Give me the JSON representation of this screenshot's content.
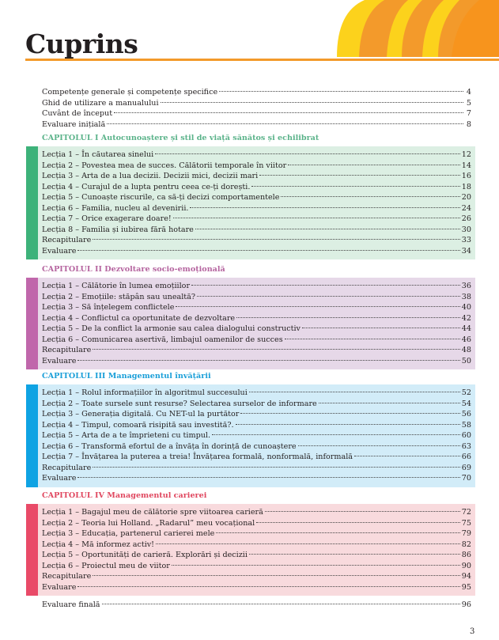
{
  "title": "Cuprins",
  "page_number": "3",
  "colors": {
    "accent": "#f39a2b",
    "deco_yellow": "#fcd21c",
    "deco_orange": "#f39a2b"
  },
  "intro": [
    {
      "label": "Competențe generale și competențe specifice",
      "page": "4"
    },
    {
      "label": "Ghid de utilizare a manualului",
      "page": "5"
    },
    {
      "label": "Cuvânt de început",
      "page": "7"
    },
    {
      "label": "Evaluare inițială",
      "page": "8"
    }
  ],
  "chapters": [
    {
      "title": "CAPITOLUL I  Autocunoaștere și stil de viață sănătos și echilibrat",
      "head_color": "#5bb38a",
      "bar_color": "#3db27a",
      "bg_color": "#dcefe3",
      "items": [
        {
          "label": "Lecția 1 – În căutarea sinelui",
          "page": "12"
        },
        {
          "label": "Lecția 2 – Povestea mea de succes. Călătorii temporale în viitor",
          "page": "14"
        },
        {
          "label": "Lecția 3 – Arta de a lua decizii. Decizii mici, decizii mari",
          "page": "16"
        },
        {
          "label": "Lecția 4 – Curajul de a lupta pentru ceea ce-ți dorești.",
          "page": "18"
        },
        {
          "label": "Lecția 5 – Cunoaște riscurile, ca să-ți decizi comportamentele",
          "page": "20"
        },
        {
          "label": "Lecția 6 – Familia, nucleu al devenirii.",
          "page": "24"
        },
        {
          "label": "Lecția 7 – Orice exagerare doare!",
          "page": "26"
        },
        {
          "label": "Lecția 8 – Familia și iubirea fără hotare",
          "page": "30"
        },
        {
          "label": "Recapitulare",
          "page": "33"
        },
        {
          "label": "Evaluare",
          "page": "34"
        }
      ]
    },
    {
      "title": "CAPITOLUL II Dezvoltare socio-emoțională",
      "head_color": "#b5649f",
      "bar_color": "#c067ab",
      "bg_color": "#e6d8e8",
      "items": [
        {
          "label": "Lecția 1 – Călătorie în lumea emoțiilor",
          "page": "36"
        },
        {
          "label": "Lecția 2 – Emoțiile: stăpân sau unealtă?",
          "page": "38"
        },
        {
          "label": "Lecția 3 – Să înțelegem conflictele",
          "page": "40"
        },
        {
          "label": "Lecția 4 – Conflictul ca oportunitate de dezvoltare",
          "page": "42"
        },
        {
          "label": "Lecția 5 – De la conflict la armonie sau calea dialogului constructiv",
          "page": "44"
        },
        {
          "label": "Lecția 6 – Comunicarea asertivă, limbajul oamenilor de succes",
          "page": "46"
        },
        {
          "label": "Recapitulare",
          "page": "48"
        },
        {
          "label": "Evaluare",
          "page": "50"
        }
      ]
    },
    {
      "title": "CAPITOLUL III Managementul învățării",
      "head_color": "#1a9fd8",
      "bar_color": "#0fa3e3",
      "bg_color": "#d2ecf8",
      "items": [
        {
          "label": "Lecția 1 – Rolul informațiilor în algoritmul succesului",
          "page": "52"
        },
        {
          "label": "Lecția 2 – Toate sursele sunt resurse? Selectarea surselor de informare",
          "page": "54"
        },
        {
          "label": "Lecția 3 – Generația digitală. Cu NET-ul la purtător",
          "page": "56"
        },
        {
          "label": "Lecția 4 – Timpul, comoară risipită sau investită?.",
          "page": "58"
        },
        {
          "label": "Lecția 5 – Arta de a te împrieteni cu timpul.",
          "page": "60"
        },
        {
          "label": "Lecția 6 – Transformă efortul de a învăța în dorință de cunoaștere",
          "page": "63"
        },
        {
          "label": "Lecția 7 – Învățarea la puterea a treia! Învățarea formală, nonformală, informală",
          "page": "66"
        },
        {
          "label": "Recapitulare",
          "page": "69"
        },
        {
          "label": "Evaluare",
          "page": "70"
        }
      ]
    },
    {
      "title": "CAPITOLUL IV Managementul carierei",
      "head_color": "#e0475f",
      "bar_color": "#e94a68",
      "bg_color": "#f8dadd",
      "items": [
        {
          "label": "Lecția 1 – Bagajul meu de călătorie spre viitoarea carieră",
          "page": "72"
        },
        {
          "label": "Lecția 2 – Teoria lui Holland. „Radarul” meu vocațional",
          "page": "75"
        },
        {
          "label": "Lecția 3 – Educația, partenerul carierei mele",
          "page": "79"
        },
        {
          "label": "Lecția 4 – Mă informez activ!",
          "page": "82"
        },
        {
          "label": "Lecția 5 – Oportunități de carieră. Explorări și decizii",
          "page": "86"
        },
        {
          "label": "Lecția 6 – Proiectul meu de viitor",
          "page": "90"
        },
        {
          "label": "Recapitulare",
          "page": "94"
        },
        {
          "label": "Evaluare",
          "page": "95"
        }
      ]
    }
  ],
  "final": {
    "label": "Evaluare finală",
    "page": "96"
  }
}
